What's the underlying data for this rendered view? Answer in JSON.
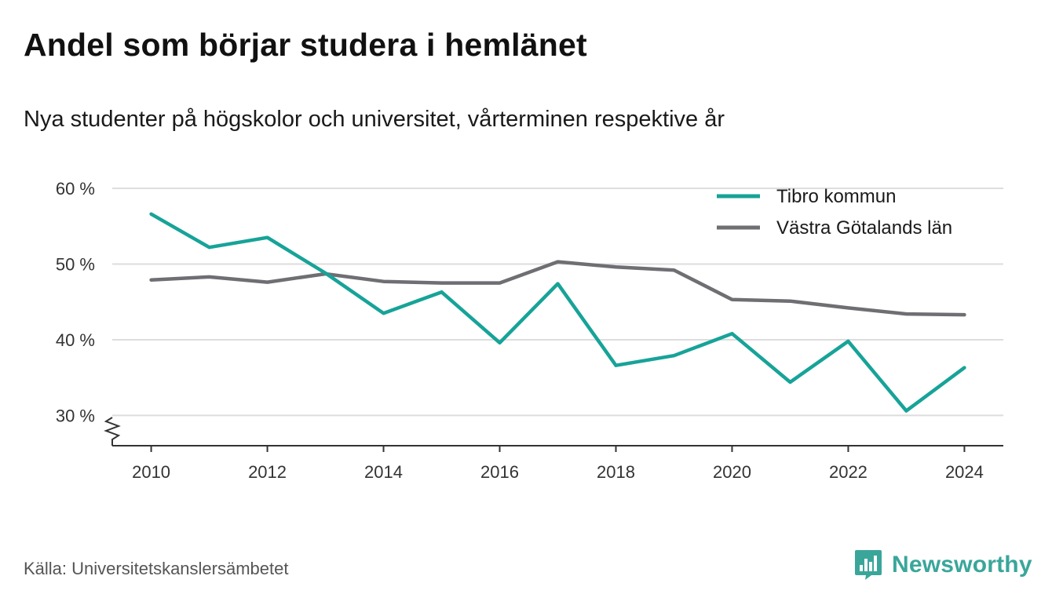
{
  "header": {
    "title": "Andel som börjar studera i hemlänet",
    "subtitle": "Nya studenter på högskolor och universitet, vårterminen respektive år"
  },
  "footer": {
    "source": "Källa: Universitetskanslersämbetet",
    "brand": "Newsworthy",
    "brand_icon": "bar-chart-speech-bubble-icon"
  },
  "colors": {
    "tibro": "#17a398",
    "vastra": "#6e6e73",
    "grid": "#dddddd",
    "axis": "#333333",
    "brand": "#3aa69a"
  },
  "chart_data": {
    "type": "line",
    "x": [
      2010,
      2011,
      2012,
      2013,
      2014,
      2015,
      2016,
      2017,
      2018,
      2019,
      2020,
      2021,
      2022,
      2023,
      2024
    ],
    "series": [
      {
        "name": "Tibro kommun",
        "color": "#17a398",
        "values": [
          56.6,
          52.2,
          53.5,
          48.8,
          43.5,
          46.3,
          39.6,
          47.4,
          36.6,
          37.9,
          40.8,
          34.4,
          39.8,
          30.6,
          36.3
        ]
      },
      {
        "name": "Västra Götalands län",
        "color": "#6e6e73",
        "values": [
          47.9,
          48.3,
          47.6,
          48.7,
          47.7,
          47.5,
          47.5,
          50.3,
          49.6,
          49.2,
          45.3,
          45.1,
          44.2,
          43.4,
          43.3
        ]
      }
    ],
    "x_ticks": [
      2010,
      2012,
      2014,
      2016,
      2018,
      2020,
      2022,
      2024
    ],
    "x_tick_labels": [
      "2010",
      "2012",
      "2014",
      "2016",
      "2018",
      "2020",
      "2022",
      "2024"
    ],
    "y_ticks": [
      30,
      40,
      50,
      60
    ],
    "y_tick_labels": [
      "30 %",
      "40 %",
      "50 %",
      "60 %"
    ],
    "ylim": [
      26,
      60
    ],
    "xlim": [
      2009.33,
      2024.67
    ],
    "axis_break": true,
    "grid": "horizontal",
    "legend_position": "top-right"
  }
}
